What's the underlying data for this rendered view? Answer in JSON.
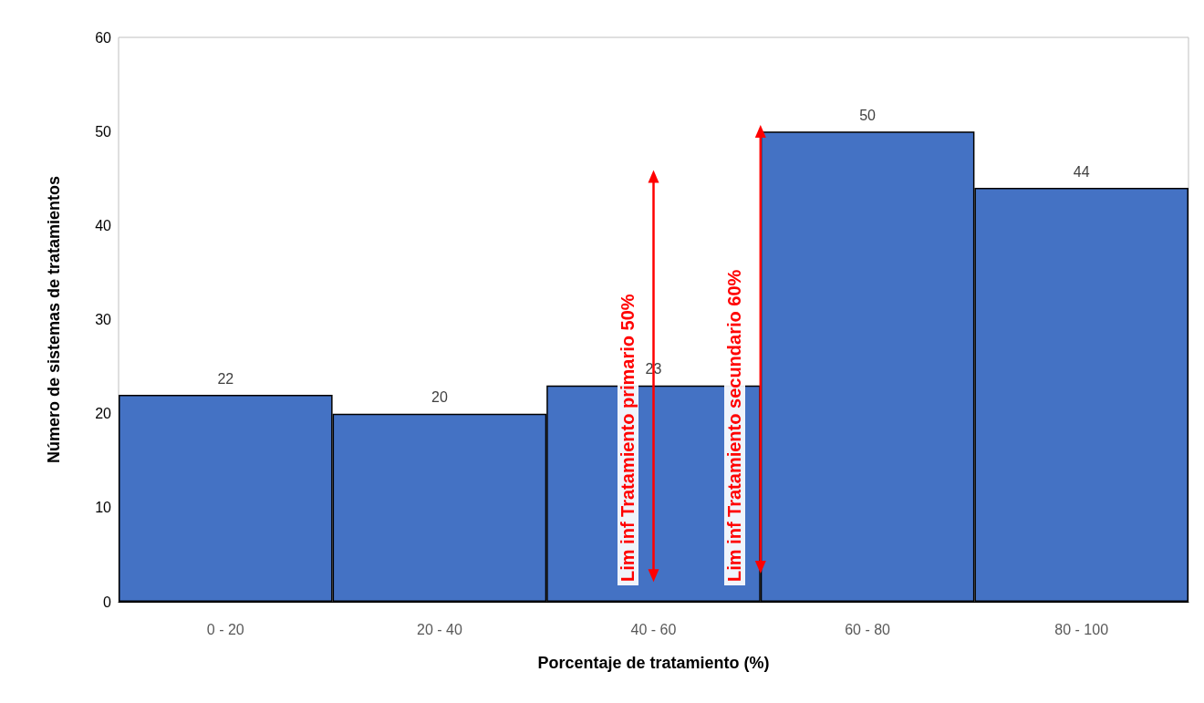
{
  "chart_data": {
    "type": "bar",
    "xlabel": "Porcentaje de tratamiento (%)",
    "ylabel": "Número de sistemas de tratamientos",
    "categories": [
      "0 - 20",
      "20 - 40",
      "40 - 60",
      "60 - 80",
      "80 - 100"
    ],
    "values": [
      22,
      20,
      23,
      50,
      44
    ],
    "color": "#4472c4",
    "ylim": [
      0,
      60
    ],
    "yticks": [
      0,
      10,
      20,
      30,
      40,
      50,
      60
    ],
    "grid": false,
    "data_labels": true,
    "annotations": [
      "Lim inf Tratamiento primario 50%",
      "Lim inf Tratamiento secundario 60%"
    ]
  }
}
